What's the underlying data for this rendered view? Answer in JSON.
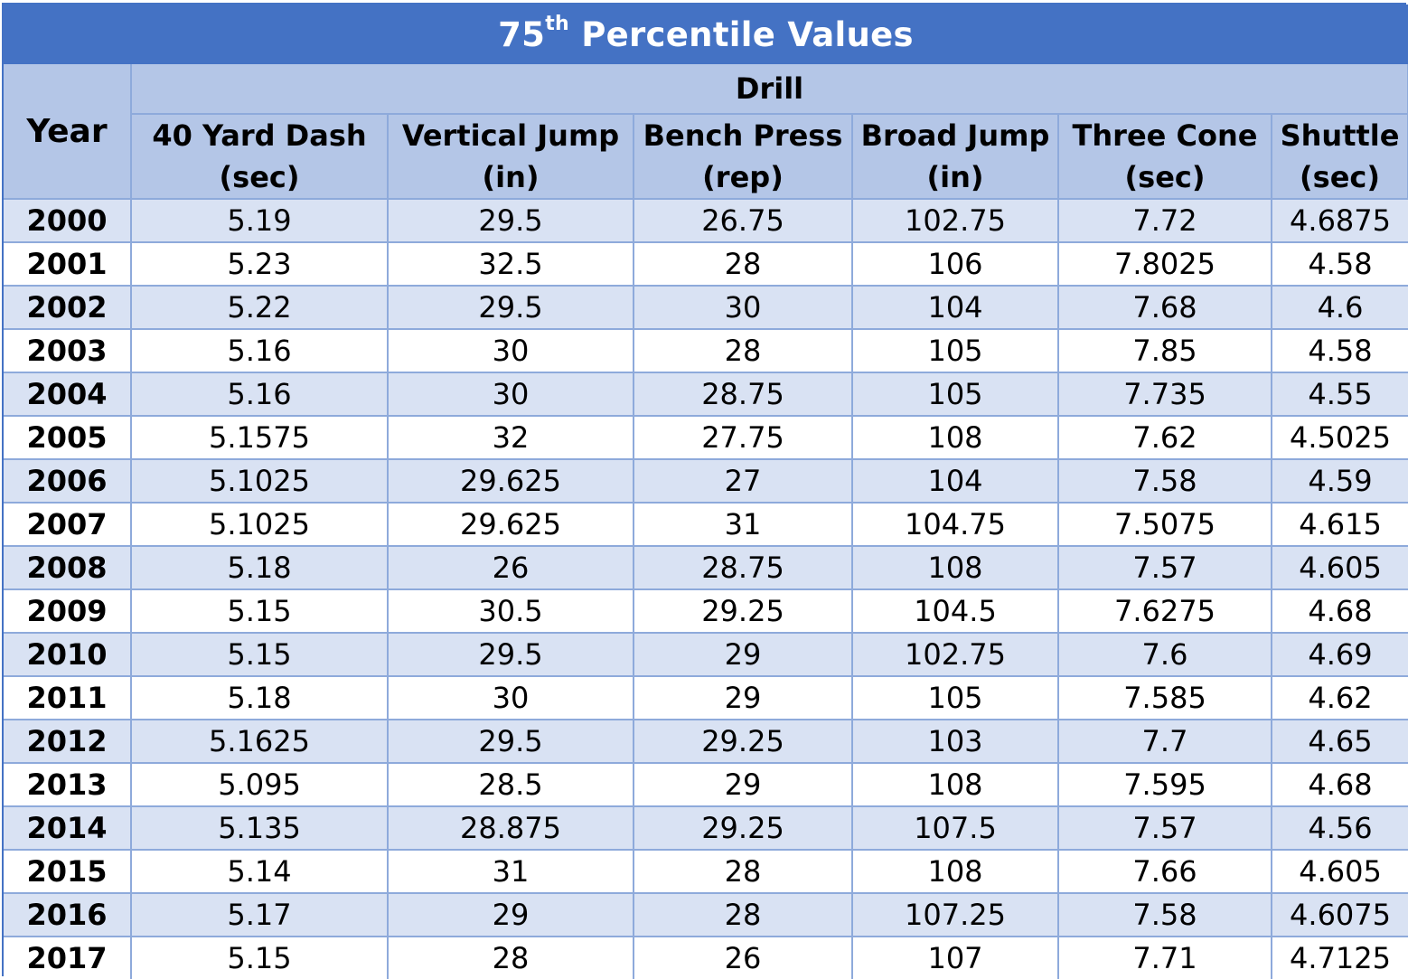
{
  "title": {
    "main": "75",
    "sup": "th",
    "rest": " Percentile Values"
  },
  "header": {
    "year": "Year",
    "group": "Drill",
    "columns": [
      {
        "name": "40 Yard Dash",
        "unit": "(sec)"
      },
      {
        "name": "Vertical Jump",
        "unit": "(in)"
      },
      {
        "name": "Bench Press",
        "unit": "(rep)"
      },
      {
        "name": "Broad Jump",
        "unit": "(in)"
      },
      {
        "name": "Three Cone",
        "unit": "(sec)"
      },
      {
        "name": "Shuttle",
        "unit": "(sec)"
      }
    ]
  },
  "rows": [
    {
      "year": "2000",
      "values": [
        "5.19",
        "29.5",
        "26.75",
        "102.75",
        "7.72",
        "4.6875"
      ]
    },
    {
      "year": "2001",
      "values": [
        "5.23",
        "32.5",
        "28",
        "106",
        "7.8025",
        "4.58"
      ]
    },
    {
      "year": "2002",
      "values": [
        "5.22",
        "29.5",
        "30",
        "104",
        "7.68",
        "4.6"
      ]
    },
    {
      "year": "2003",
      "values": [
        "5.16",
        "30",
        "28",
        "105",
        "7.85",
        "4.58"
      ]
    },
    {
      "year": "2004",
      "values": [
        "5.16",
        "30",
        "28.75",
        "105",
        "7.735",
        "4.55"
      ]
    },
    {
      "year": "2005",
      "values": [
        "5.1575",
        "32",
        "27.75",
        "108",
        "7.62",
        "4.5025"
      ]
    },
    {
      "year": "2006",
      "values": [
        "5.1025",
        "29.625",
        "27",
        "104",
        "7.58",
        "4.59"
      ]
    },
    {
      "year": "2007",
      "values": [
        "5.1025",
        "29.625",
        "31",
        "104.75",
        "7.5075",
        "4.615"
      ]
    },
    {
      "year": "2008",
      "values": [
        "5.18",
        "26",
        "28.75",
        "108",
        "7.57",
        "4.605"
      ]
    },
    {
      "year": "2009",
      "values": [
        "5.15",
        "30.5",
        "29.25",
        "104.5",
        "7.6275",
        "4.68"
      ]
    },
    {
      "year": "2010",
      "values": [
        "5.15",
        "29.5",
        "29",
        "102.75",
        "7.6",
        "4.69"
      ]
    },
    {
      "year": "2011",
      "values": [
        "5.18",
        "30",
        "29",
        "105",
        "7.585",
        "4.62"
      ]
    },
    {
      "year": "2012",
      "values": [
        "5.1625",
        "29.5",
        "29.25",
        "103",
        "7.7",
        "4.65"
      ]
    },
    {
      "year": "2013",
      "values": [
        "5.095",
        "28.5",
        "29",
        "108",
        "7.595",
        "4.68"
      ]
    },
    {
      "year": "2014",
      "values": [
        "5.135",
        "28.875",
        "29.25",
        "107.5",
        "7.57",
        "4.56"
      ]
    },
    {
      "year": "2015",
      "values": [
        "5.14",
        "31",
        "28",
        "108",
        "7.66",
        "4.605"
      ]
    },
    {
      "year": "2016",
      "values": [
        "5.17",
        "29",
        "28",
        "107.25",
        "7.58",
        "4.6075"
      ]
    },
    {
      "year": "2017",
      "values": [
        "5.15",
        "28",
        "26",
        "107",
        "7.71",
        "4.7125"
      ]
    }
  ]
}
